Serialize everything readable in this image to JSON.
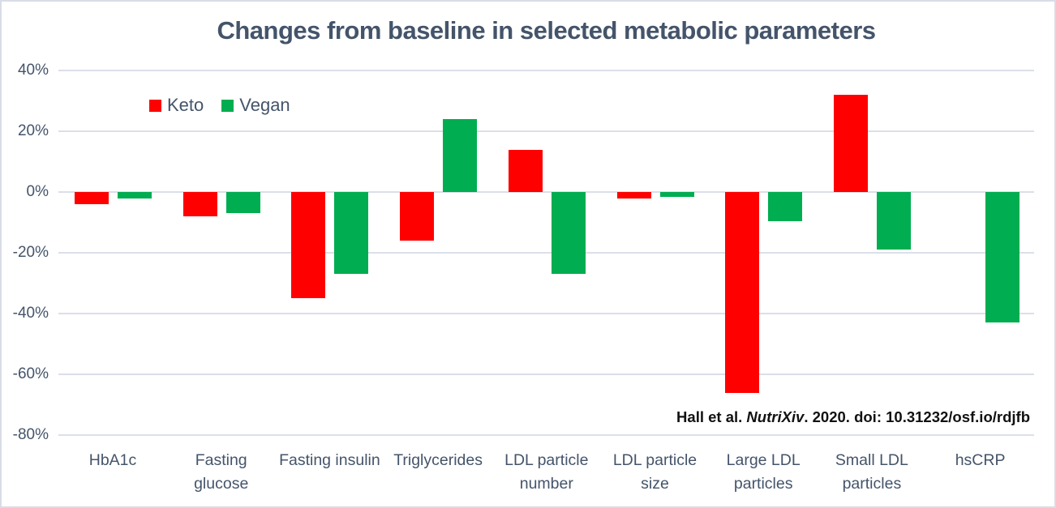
{
  "title": "Changes from baseline in selected metabolic parameters",
  "citation": {
    "prefix": "Hall et al. ",
    "italic": "NutriXiv",
    "suffix": ". 2020. doi: 10.31232/osf.io/rdjfb"
  },
  "legend": [
    {
      "label": "Keto",
      "color": "#ff0000"
    },
    {
      "label": "Vegan",
      "color": "#00ad50"
    }
  ],
  "colors": {
    "keto": "#ff0000",
    "vegan": "#00ad50",
    "text": "#44546a",
    "gridline": "#dbdfe9",
    "citation_text": "#111111",
    "background": "#ffffff",
    "border": "#d9dde6"
  },
  "chart_data": {
    "type": "bar",
    "title": "Changes from baseline in selected metabolic parameters",
    "categories": [
      "HbA1c",
      "Fasting glucose",
      "Fasting insulin",
      "Triglycerides",
      "LDL particle number",
      "LDL particle size",
      "Large LDL particles",
      "Small LDL particles",
      "hsCRP"
    ],
    "series": [
      {
        "name": "Keto",
        "color": "#ff0000",
        "values": [
          -4,
          -8,
          -35,
          -16,
          14,
          -2,
          -66,
          32,
          0
        ]
      },
      {
        "name": "Vegan",
        "color": "#00ad50",
        "values": [
          -2,
          -7,
          -27,
          24,
          -27,
          -1.5,
          -9.5,
          -19,
          -43
        ]
      }
    ],
    "unit": "%",
    "ylim": [
      -80,
      40
    ],
    "yticks": [
      "40%",
      "20%",
      "0%",
      "-20%",
      "-40%",
      "-60%",
      "-80%"
    ],
    "ytick_values": [
      40,
      20,
      0,
      -20,
      -40,
      -60,
      -80
    ],
    "grid": true,
    "legend_position": "top-left-inside",
    "xlabel": "",
    "ylabel": ""
  }
}
